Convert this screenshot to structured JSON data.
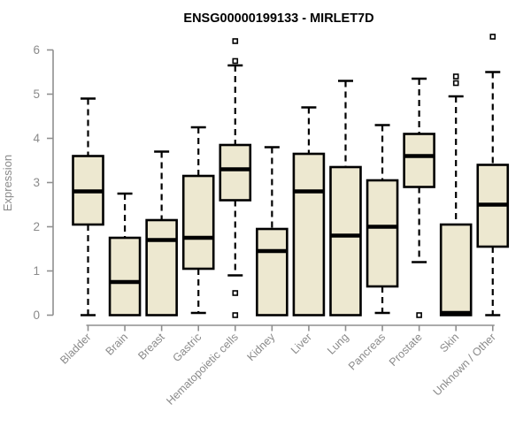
{
  "chart_data": {
    "type": "boxplot",
    "title": "ENSG00000199133 - MIRLET7D",
    "ylabel": "Expression",
    "xlabel": "",
    "ylim": [
      0,
      6
    ],
    "yticks": [
      0,
      1,
      2,
      3,
      4,
      5,
      6
    ],
    "grid": false,
    "legend": "none",
    "categories": [
      "Bladder",
      "Brain",
      "Breast",
      "Gastric",
      "Hematopoietic cells",
      "Kidney",
      "Liver",
      "Lung",
      "Pancreas",
      "Prostate",
      "Skin",
      "Unknown / Other"
    ],
    "series": [
      {
        "category": "Bladder",
        "whisker_low": 0.0,
        "q1": 2.05,
        "median": 2.8,
        "q3": 3.6,
        "whisker_high": 4.9,
        "outliers": []
      },
      {
        "category": "Brain",
        "whisker_low": 0.0,
        "q1": 0.0,
        "median": 0.75,
        "q3": 1.75,
        "whisker_high": 2.75,
        "outliers": []
      },
      {
        "category": "Breast",
        "whisker_low": 0.0,
        "q1": 0.0,
        "median": 1.7,
        "q3": 2.15,
        "whisker_high": 3.7,
        "outliers": []
      },
      {
        "category": "Gastric",
        "whisker_low": 0.05,
        "q1": 1.05,
        "median": 1.75,
        "q3": 3.15,
        "whisker_high": 4.25,
        "outliers": []
      },
      {
        "category": "Hematopoietic cells",
        "whisker_low": 0.9,
        "q1": 2.6,
        "median": 3.3,
        "q3": 3.85,
        "whisker_high": 5.65,
        "outliers": [
          6.2,
          5.75,
          0.5,
          0.0
        ]
      },
      {
        "category": "Kidney",
        "whisker_low": 0.0,
        "q1": 0.0,
        "median": 1.45,
        "q3": 1.95,
        "whisker_high": 3.8,
        "outliers": []
      },
      {
        "category": "Liver",
        "whisker_low": 0.0,
        "q1": 0.0,
        "median": 2.8,
        "q3": 3.65,
        "whisker_high": 4.7,
        "outliers": []
      },
      {
        "category": "Lung",
        "whisker_low": 0.0,
        "q1": 0.0,
        "median": 1.8,
        "q3": 3.35,
        "whisker_high": 5.3,
        "outliers": []
      },
      {
        "category": "Pancreas",
        "whisker_low": 0.05,
        "q1": 0.65,
        "median": 2.0,
        "q3": 3.05,
        "whisker_high": 4.3,
        "outliers": []
      },
      {
        "category": "Prostate",
        "whisker_low": 1.2,
        "q1": 2.9,
        "median": 3.6,
        "q3": 4.1,
        "whisker_high": 5.35,
        "outliers": [
          0.0
        ]
      },
      {
        "category": "Skin",
        "whisker_low": 0.0,
        "q1": 0.0,
        "median": 0.05,
        "q3": 2.05,
        "whisker_high": 4.95,
        "outliers": [
          5.4,
          5.25
        ]
      },
      {
        "category": "Unknown / Other",
        "whisker_low": 0.0,
        "q1": 1.55,
        "median": 2.5,
        "q3": 3.4,
        "whisker_high": 5.5,
        "outliers": [
          6.3
        ]
      }
    ],
    "colors": {
      "box_fill": "#ede8d0",
      "box_stroke": "#000000",
      "median": "#000000",
      "whisker": "#000000",
      "outlier_stroke": "#000000",
      "outlier_fill": "#ffffff",
      "axis": "#8f8f8f",
      "tick_label": "#8a8a8a",
      "title": "#000000",
      "background": "#ffffff"
    }
  }
}
